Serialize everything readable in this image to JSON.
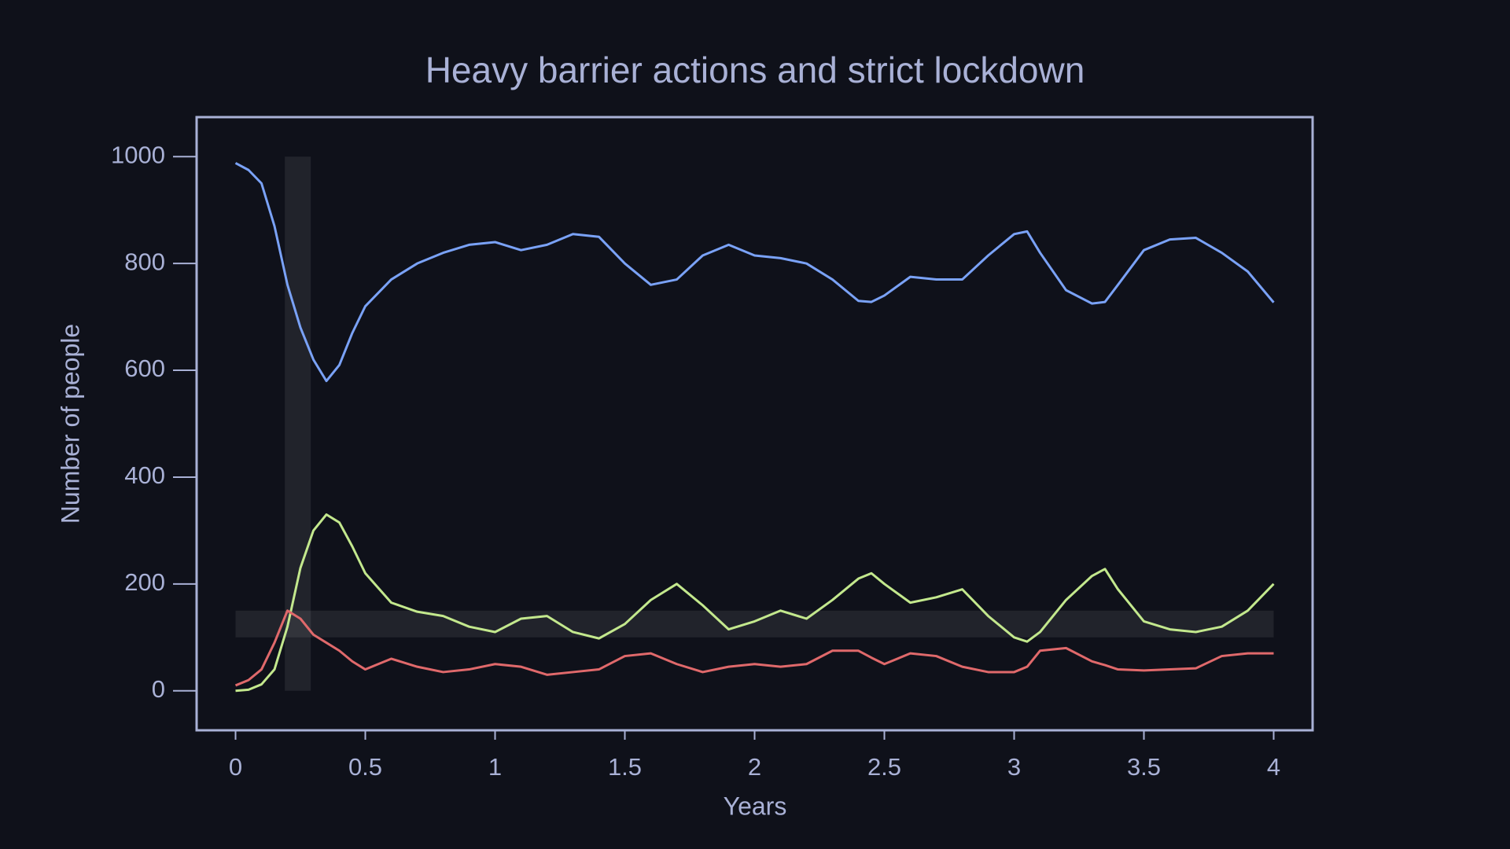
{
  "chart_data": {
    "type": "line",
    "title": "Heavy barrier actions and strict lockdown",
    "xlabel": "Years",
    "ylabel": "Number of people",
    "x": [
      0,
      0.05,
      0.1,
      0.15,
      0.2,
      0.25,
      0.3,
      0.35,
      0.4,
      0.45,
      0.5,
      0.6,
      0.7,
      0.8,
      0.9,
      1.0,
      1.1,
      1.2,
      1.3,
      1.4,
      1.5,
      1.6,
      1.7,
      1.8,
      1.9,
      2.0,
      2.1,
      2.2,
      2.3,
      2.4,
      2.45,
      2.5,
      2.6,
      2.7,
      2.8,
      2.9,
      3.0,
      3.05,
      3.1,
      3.2,
      3.3,
      3.35,
      3.4,
      3.5,
      3.6,
      3.7,
      3.8,
      3.9,
      4.0
    ],
    "series": [
      {
        "color": "#7aa2f7",
        "values": [
          988,
          975,
          950,
          870,
          760,
          680,
          620,
          580,
          610,
          670,
          720,
          770,
          800,
          820,
          835,
          840,
          825,
          835,
          855,
          850,
          800,
          760,
          770,
          815,
          835,
          815,
          810,
          800,
          770,
          730,
          728,
          740,
          775,
          770,
          770,
          815,
          855,
          860,
          820,
          750,
          725,
          728,
          760,
          825,
          845,
          848,
          820,
          785,
          727
        ]
      },
      {
        "color": "#c3e88d",
        "values": [
          0,
          2,
          12,
          40,
          120,
          230,
          300,
          330,
          315,
          270,
          220,
          165,
          148,
          140,
          120,
          110,
          135,
          140,
          110,
          98,
          125,
          170,
          200,
          160,
          115,
          130,
          150,
          135,
          170,
          210,
          220,
          200,
          165,
          175,
          190,
          140,
          100,
          92,
          110,
          170,
          215,
          228,
          190,
          130,
          115,
          110,
          120,
          150,
          200
        ]
      },
      {
        "color": "#e0696b",
        "values": [
          10,
          20,
          40,
          90,
          150,
          135,
          105,
          90,
          75,
          55,
          40,
          60,
          45,
          35,
          40,
          50,
          45,
          30,
          35,
          40,
          65,
          70,
          50,
          35,
          45,
          50,
          45,
          50,
          75,
          75,
          62,
          50,
          70,
          65,
          45,
          35,
          35,
          45,
          75,
          80,
          55,
          48,
          40,
          38,
          40,
          42,
          65,
          70,
          70
        ]
      }
    ],
    "shaded_regions": [
      {
        "x": [
          0.19,
          0.29
        ],
        "y": [
          0,
          1000
        ]
      },
      {
        "x": [
          0,
          4
        ],
        "y": [
          100,
          150
        ]
      }
    ],
    "xlim": [
      -0.15,
      4.15
    ],
    "ylim": [
      -74,
      1074
    ],
    "xticks": [
      0,
      0.5,
      1,
      1.5,
      2,
      2.5,
      3,
      3.5,
      4
    ],
    "yticks": [
      0,
      200,
      400,
      600,
      800,
      1000
    ]
  }
}
